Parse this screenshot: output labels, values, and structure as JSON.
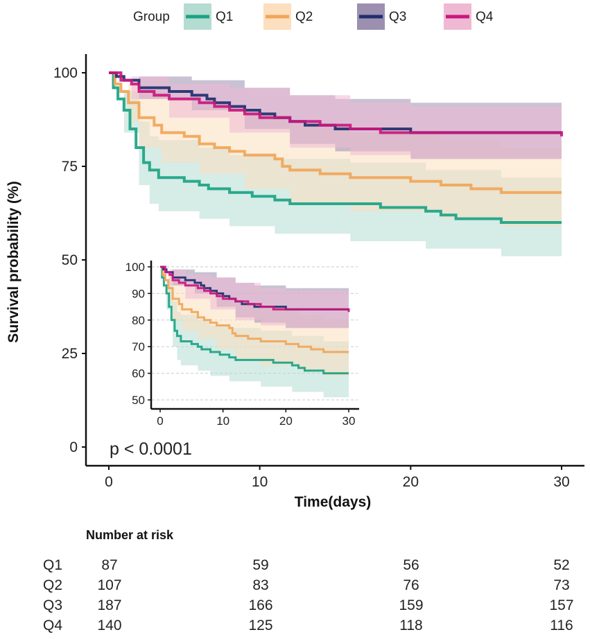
{
  "chart_data": {
    "type": "line",
    "subtype": "kaplan-meier survival curve with confidence bands",
    "xlabel": "Time(days)",
    "ylabel": "Survival probability (%)",
    "xlim": [
      0,
      30
    ],
    "ylim": [
      0,
      100
    ],
    "x_ticks": [
      "0",
      "10",
      "20",
      "30"
    ],
    "y_ticks": [
      "0",
      "25",
      "50",
      "75",
      "100"
    ],
    "annotation": "p < 0.0001",
    "legend": {
      "title": "Group",
      "position": "top"
    },
    "series": [
      {
        "name": "Q1",
        "color": "#1aa384",
        "band_color": "#b5dcd1",
        "points": [
          [
            0,
            100
          ],
          [
            0.3,
            96
          ],
          [
            0.6,
            93
          ],
          [
            1,
            90
          ],
          [
            1.4,
            85
          ],
          [
            1.8,
            80
          ],
          [
            2.3,
            76
          ],
          [
            2.7,
            74
          ],
          [
            3.3,
            72
          ],
          [
            5,
            71
          ],
          [
            6,
            70
          ],
          [
            6.6,
            69
          ],
          [
            8,
            68
          ],
          [
            9.5,
            67
          ],
          [
            11,
            66
          ],
          [
            12,
            65
          ],
          [
            16,
            65
          ],
          [
            18,
            64
          ],
          [
            21,
            63
          ],
          [
            22,
            62
          ],
          [
            23,
            61
          ],
          [
            26,
            60
          ],
          [
            30,
            60
          ]
        ],
        "ci_upper": [
          [
            0,
            100
          ],
          [
            1,
            95
          ],
          [
            2,
            87
          ],
          [
            2.7,
            83
          ],
          [
            3.3,
            82
          ],
          [
            6,
            80
          ],
          [
            8,
            78
          ],
          [
            11,
            77
          ],
          [
            16,
            76
          ],
          [
            21,
            74
          ],
          [
            26,
            72
          ],
          [
            30,
            71
          ]
        ],
        "ci_lower": [
          [
            0,
            100
          ],
          [
            1,
            84
          ],
          [
            2,
            70
          ],
          [
            2.7,
            65
          ],
          [
            3.3,
            63
          ],
          [
            6,
            61
          ],
          [
            8,
            59
          ],
          [
            11,
            57
          ],
          [
            16,
            55
          ],
          [
            21,
            53
          ],
          [
            26,
            51
          ],
          [
            30,
            50
          ]
        ]
      },
      {
        "name": "Q2",
        "color": "#f0a658",
        "band_color": "#fcdfbe",
        "points": [
          [
            0,
            100
          ],
          [
            0.4,
            97
          ],
          [
            0.8,
            95
          ],
          [
            1.3,
            92
          ],
          [
            2,
            88
          ],
          [
            3,
            86
          ],
          [
            3.5,
            84
          ],
          [
            5,
            83
          ],
          [
            6,
            81
          ],
          [
            7,
            80
          ],
          [
            8,
            79
          ],
          [
            9,
            78
          ],
          [
            11,
            77
          ],
          [
            11.5,
            75
          ],
          [
            12,
            74
          ],
          [
            14,
            73
          ],
          [
            16,
            72
          ],
          [
            20,
            71
          ],
          [
            22,
            70
          ],
          [
            24,
            69
          ],
          [
            26,
            68
          ],
          [
            30,
            68
          ]
        ],
        "ci_upper": [
          [
            0,
            100
          ],
          [
            1.3,
            97
          ],
          [
            2,
            95
          ],
          [
            3.5,
            93
          ],
          [
            6,
            91
          ],
          [
            9,
            89
          ],
          [
            12,
            86
          ],
          [
            16,
            84
          ],
          [
            22,
            82
          ],
          [
            26,
            80
          ],
          [
            30,
            80
          ]
        ],
        "ci_lower": [
          [
            0,
            100
          ],
          [
            1.3,
            87
          ],
          [
            2,
            80
          ],
          [
            3.5,
            76
          ],
          [
            6,
            73
          ],
          [
            9,
            69
          ],
          [
            12,
            65
          ],
          [
            16,
            63
          ],
          [
            22,
            61
          ],
          [
            26,
            59
          ],
          [
            30,
            58
          ]
        ]
      },
      {
        "name": "Q3",
        "color": "#1e2f6e",
        "band_color": "#9c8fb0",
        "points": [
          [
            0,
            100
          ],
          [
            0.5,
            99
          ],
          [
            1,
            98
          ],
          [
            2,
            96
          ],
          [
            4,
            95
          ],
          [
            5.5,
            94
          ],
          [
            6.5,
            93
          ],
          [
            7,
            92
          ],
          [
            8,
            91
          ],
          [
            9,
            90
          ],
          [
            10,
            89
          ],
          [
            11,
            88
          ],
          [
            12,
            87
          ],
          [
            13,
            86
          ],
          [
            15,
            85
          ],
          [
            18,
            85
          ],
          [
            20,
            84
          ],
          [
            24,
            84
          ],
          [
            30,
            84
          ]
        ],
        "ci_upper": [
          [
            0,
            100
          ],
          [
            2,
            99
          ],
          [
            5.5,
            98
          ],
          [
            9,
            96
          ],
          [
            12,
            94
          ],
          [
            15,
            93
          ],
          [
            20,
            92
          ],
          [
            30,
            92
          ]
        ],
        "ci_lower": [
          [
            0,
            100
          ],
          [
            2,
            93
          ],
          [
            5.5,
            90
          ],
          [
            9,
            85
          ],
          [
            12,
            81
          ],
          [
            15,
            79
          ],
          [
            20,
            77
          ],
          [
            30,
            76
          ]
        ]
      },
      {
        "name": "Q4",
        "color": "#c9177e",
        "band_color": "#efb9d3",
        "points": [
          [
            0,
            100
          ],
          [
            0.8,
            98
          ],
          [
            1.5,
            97
          ],
          [
            2,
            95
          ],
          [
            3,
            94
          ],
          [
            4,
            93
          ],
          [
            6,
            92
          ],
          [
            7,
            91
          ],
          [
            8,
            90
          ],
          [
            9,
            89
          ],
          [
            10,
            88
          ],
          [
            12,
            87
          ],
          [
            14,
            86
          ],
          [
            16,
            85
          ],
          [
            18,
            84
          ],
          [
            25,
            84
          ],
          [
            30,
            83
          ]
        ],
        "ci_upper": [
          [
            0,
            100
          ],
          [
            1.5,
            99
          ],
          [
            4,
            97
          ],
          [
            8,
            96
          ],
          [
            12,
            94
          ],
          [
            16,
            92
          ],
          [
            20,
            91
          ],
          [
            30,
            90
          ]
        ],
        "ci_lower": [
          [
            0,
            100
          ],
          [
            1.5,
            93
          ],
          [
            4,
            88
          ],
          [
            8,
            84
          ],
          [
            12,
            80
          ],
          [
            16,
            78
          ],
          [
            20,
            77
          ],
          [
            30,
            76
          ]
        ]
      }
    ],
    "inset": {
      "xlim": [
        0,
        30
      ],
      "ylim": [
        50,
        100
      ],
      "x_ticks": [
        "0",
        "10",
        "20",
        "30"
      ],
      "y_ticks": [
        "50",
        "60",
        "70",
        "80",
        "90",
        "100"
      ]
    },
    "risk_table": {
      "title": "Number at risk",
      "times": [
        0,
        10,
        20,
        30
      ],
      "rows": [
        {
          "group": "Q1",
          "counts": [
            "87",
            "59",
            "56",
            "52"
          ]
        },
        {
          "group": "Q2",
          "counts": [
            "107",
            "83",
            "76",
            "73"
          ]
        },
        {
          "group": "Q3",
          "counts": [
            "187",
            "166",
            "159",
            "157"
          ]
        },
        {
          "group": "Q4",
          "counts": [
            "140",
            "125",
            "118",
            "116"
          ]
        }
      ]
    }
  }
}
